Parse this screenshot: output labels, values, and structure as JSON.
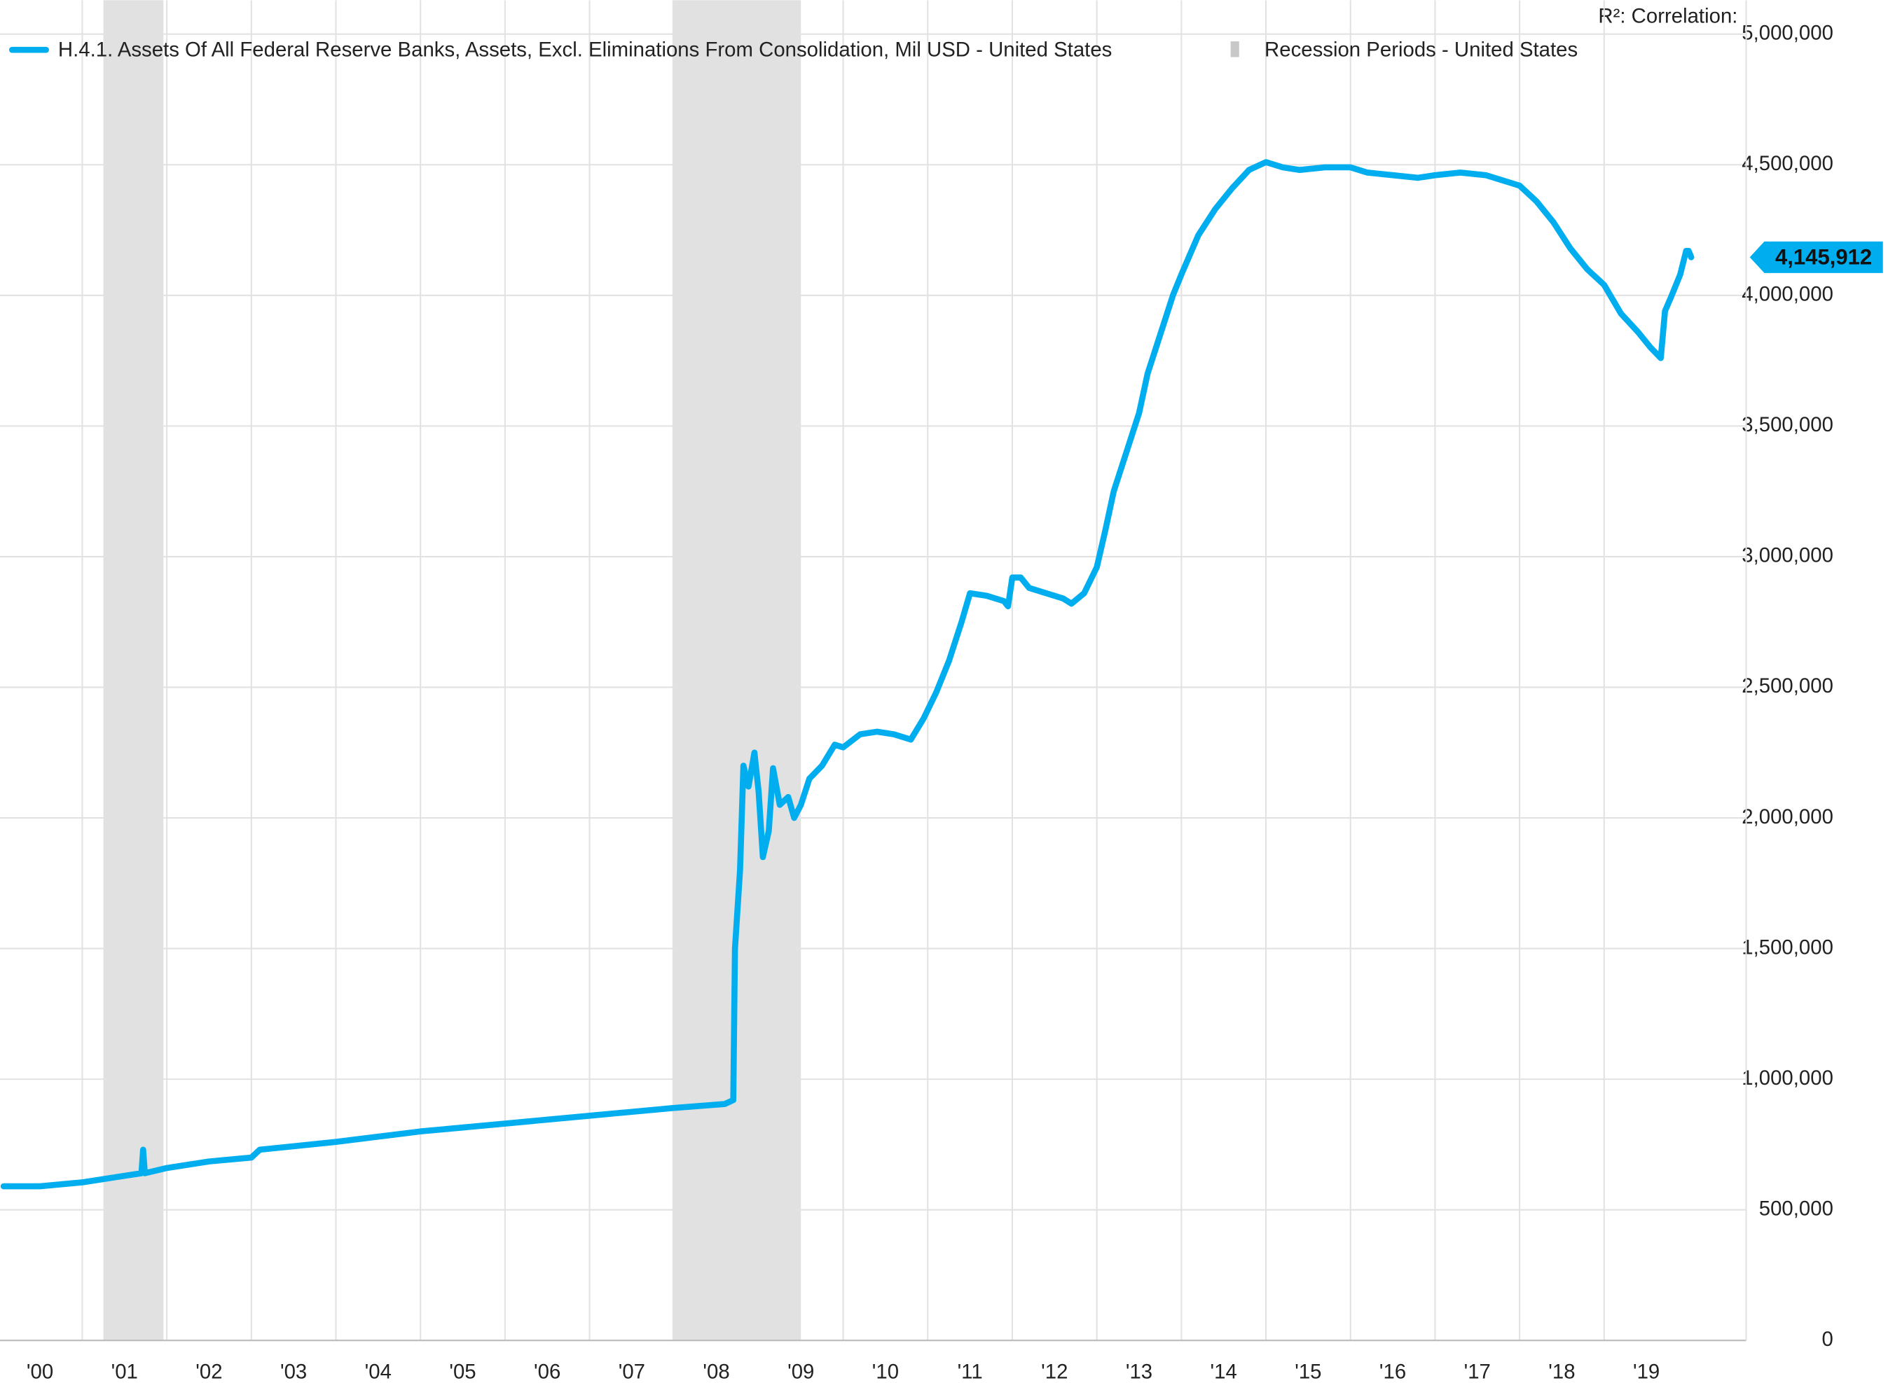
{
  "chart_data": {
    "type": "line",
    "header_stats": "R²:  Correlation:",
    "x": [
      2000.07,
      2000.5,
      2001.0,
      2001.5,
      2001.7,
      2001.72,
      2001.74,
      2002.0,
      2002.5,
      2003.0,
      2003.1,
      2004.0,
      2005.0,
      2006.0,
      2007.0,
      2007.5,
      2008.0,
      2008.6,
      2008.7,
      2008.72,
      2008.78,
      2008.82,
      2008.88,
      2008.95,
      2009.0,
      2009.05,
      2009.12,
      2009.17,
      2009.25,
      2009.35,
      2009.42,
      2009.5,
      2009.6,
      2009.75,
      2009.9,
      2010.0,
      2010.2,
      2010.4,
      2010.6,
      2010.8,
      2010.95,
      2011.1,
      2011.25,
      2011.4,
      2011.5,
      2011.7,
      2011.9,
      2011.95,
      2012.0,
      2012.1,
      2012.2,
      2012.4,
      2012.6,
      2012.7,
      2012.85,
      2013.0,
      2013.1,
      2013.2,
      2013.35,
      2013.5,
      2013.6,
      2013.75,
      2013.9,
      2014.0,
      2014.2,
      2014.4,
      2014.6,
      2014.8,
      2015.0,
      2015.2,
      2015.4,
      2015.7,
      2016.0,
      2016.2,
      2016.5,
      2016.8,
      2017.0,
      2017.3,
      2017.6,
      2017.8,
      2018.0,
      2018.2,
      2018.4,
      2018.6,
      2018.8,
      2019.0,
      2019.2,
      2019.4,
      2019.55,
      2019.67,
      2019.72,
      2019.8,
      2019.9,
      2019.97,
      2020.0,
      2020.03
    ],
    "series": [
      {
        "name": "H.4.1. Assets Of All Federal Reserve Banks, Assets, Excl. Eliminations From Consolidation, Mil USD - United States",
        "color": "#00aeef",
        "values": [
          590000,
          590000,
          605000,
          630000,
          640000,
          730000,
          640000,
          660000,
          685000,
          700000,
          730000,
          760000,
          800000,
          830000,
          860000,
          875000,
          890000,
          905000,
          920000,
          1500000,
          1800000,
          2200000,
          2120000,
          2250000,
          2100000,
          1850000,
          1950000,
          2190000,
          2050000,
          2080000,
          2000000,
          2050000,
          2150000,
          2200000,
          2280000,
          2270000,
          2320000,
          2330000,
          2320000,
          2300000,
          2380000,
          2480000,
          2600000,
          2750000,
          2860000,
          2850000,
          2830000,
          2810000,
          2920000,
          2920000,
          2880000,
          2860000,
          2840000,
          2820000,
          2860000,
          2960000,
          3100000,
          3250000,
          3400000,
          3550000,
          3700000,
          3850000,
          4000000,
          4080000,
          4230000,
          4330000,
          4410000,
          4480000,
          4510000,
          4490000,
          4480000,
          4490000,
          4490000,
          4470000,
          4460000,
          4450000,
          4460000,
          4470000,
          4460000,
          4440000,
          4420000,
          4360000,
          4280000,
          4180000,
          4100000,
          4040000,
          3930000,
          3860000,
          3800000,
          3760000,
          3940000,
          4000000,
          4080000,
          4170000,
          4170000,
          4145912
        ],
        "value_labels": [
          null,
          null,
          null,
          null,
          null,
          null,
          null,
          null,
          null,
          null,
          null,
          null,
          null,
          null,
          null,
          null,
          null,
          null,
          null,
          null,
          null,
          null,
          null,
          null,
          null,
          null,
          null,
          null,
          null,
          null,
          null,
          null,
          null,
          null,
          null,
          null,
          null,
          null,
          null,
          null,
          null,
          null,
          null,
          null,
          null,
          null,
          null,
          null,
          null,
          null,
          null,
          null,
          null,
          null,
          null,
          null,
          null,
          null,
          null,
          null,
          null,
          null,
          null,
          null,
          null,
          null,
          null,
          null,
          null,
          null,
          null,
          null,
          null,
          null,
          null,
          null,
          null,
          null,
          null,
          null,
          null,
          null,
          null,
          null,
          null,
          null,
          null,
          null,
          null,
          null,
          null,
          null,
          null,
          null,
          null,
          "4,145,912"
        ]
      }
    ],
    "recessions": {
      "name": "Recession Periods - United States",
      "color": "#e1e1e1",
      "periods": [
        [
          2001.25,
          2001.96
        ],
        [
          2007.98,
          2009.5
        ]
      ]
    },
    "xlim": [
      2000.07,
      2020.68
    ],
    "xticks": [
      {
        "value": 2000,
        "label": "'00"
      },
      {
        "value": 2001,
        "label": "'01"
      },
      {
        "value": 2002,
        "label": "'02"
      },
      {
        "value": 2003,
        "label": "'03"
      },
      {
        "value": 2004,
        "label": "'04"
      },
      {
        "value": 2005,
        "label": "'05"
      },
      {
        "value": 2006,
        "label": "'06"
      },
      {
        "value": 2007,
        "label": "'07"
      },
      {
        "value": 2008,
        "label": "'08"
      },
      {
        "value": 2009,
        "label": "'09"
      },
      {
        "value": 2010,
        "label": "'10"
      },
      {
        "value": 2011,
        "label": "'11"
      },
      {
        "value": 2012,
        "label": "'12"
      },
      {
        "value": 2013,
        "label": "'13"
      },
      {
        "value": 2014,
        "label": "'14"
      },
      {
        "value": 2015,
        "label": "'15"
      },
      {
        "value": 2016,
        "label": "'16"
      },
      {
        "value": 2017,
        "label": "'17"
      },
      {
        "value": 2018,
        "label": "'18"
      },
      {
        "value": 2019,
        "label": "'19"
      }
    ],
    "ylim": [
      0,
      5000000
    ],
    "yticks": [
      0,
      {
        "value": 500000,
        "label": "500,000"
      },
      {
        "value": 1000000,
        "label": "1,000,000"
      },
      {
        "value": 1500000,
        "label": "1,500,000"
      },
      {
        "value": 2000000,
        "label": "2,000,000"
      },
      {
        "value": 2500000,
        "label": "2,500,000"
      },
      {
        "value": 3000000,
        "label": "3,000,000"
      },
      {
        "value": 3500000,
        "label": "3,500,000"
      },
      {
        "value": 4000000,
        "label": "4,000,000"
      },
      {
        "value": 4500000,
        "label": "4,500,000"
      },
      {
        "value": 5000000,
        "label": "5,000,000"
      }
    ],
    "y_axis_side": "right",
    "grid": true
  }
}
